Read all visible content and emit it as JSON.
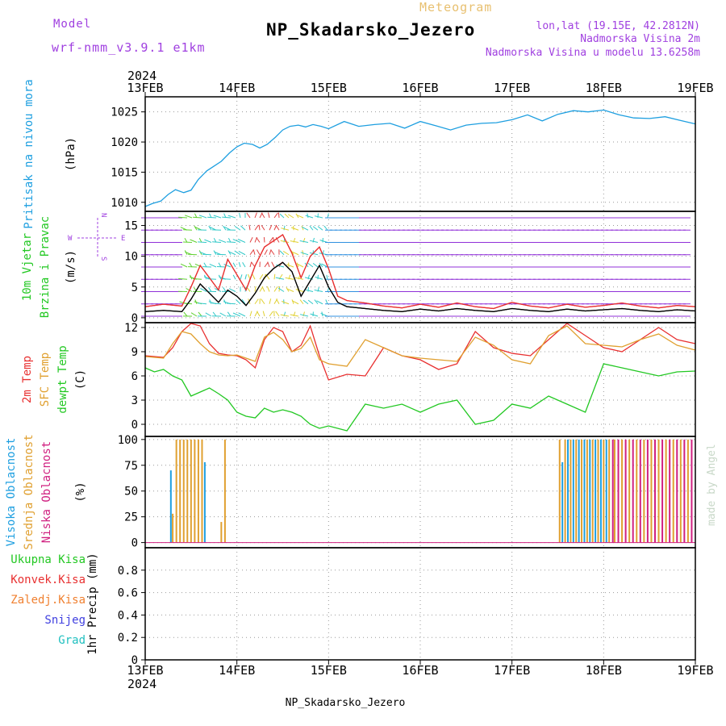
{
  "header": {
    "model_label": "Model",
    "model_name": "wrf-nmm_v3.9.1 e1km",
    "meteogram_label": "Meteogram",
    "station": "NP_Skadarsko_Jezero",
    "lonlat": "lon,lat (19.15E, 42.2812N)",
    "altitude": "Nadmorska Visina 2m",
    "model_altitude": "Nadmorska Visina u modelu 13.6258m",
    "footer_station": "NP_Skadarsko_Jezero",
    "credit": "made by Angel"
  },
  "chart_data": {
    "type": "line",
    "time_axis": {
      "year": "2024",
      "ticks": [
        "13FEB",
        "14FEB",
        "15FEB",
        "16FEB",
        "17FEB",
        "18FEB",
        "19FEB"
      ]
    },
    "colors": {
      "pressure": "#1e9fe0",
      "temp2m": "#e83030",
      "sfc": "#e0a030",
      "dewp": "#22c822",
      "wind_speed": "#000000",
      "gust": "#e83030",
      "cloud_high": "#1e9fe0",
      "cloud_mid": "#e0a030",
      "cloud_low": "#d02080",
      "precip_total": "#22c822",
      "precip_conv": "#e83030",
      "precip_frozen": "#f08030",
      "precip_snow": "#4040e0",
      "precip_graupel": "#20c0c0",
      "wind_label": "#a040e0"
    },
    "panels": [
      {
        "id": "pressure",
        "labels": [
          {
            "text": "Pritisak na nivou mora",
            "color": "#1e9fe0"
          }
        ],
        "unit": "(hPa)",
        "ylim": [
          1008.5,
          1027.5
        ],
        "yticks": [
          "1010",
          "1015",
          "1020",
          "1025"
        ],
        "series": [
          {
            "color_key": "pressure",
            "x": [
              0,
              0.08,
              0.17,
              0.25,
              0.33,
              0.42,
              0.5,
              0.58,
              0.67,
              0.75,
              0.83,
              0.92,
              1.0,
              1.08,
              1.17,
              1.25,
              1.33,
              1.42,
              1.5,
              1.58,
              1.67,
              1.75,
              1.83,
              1.92,
              2.0,
              2.17,
              2.33,
              2.5,
              2.67,
              2.83,
              3.0,
              3.17,
              3.33,
              3.5,
              3.67,
              3.83,
              4.0,
              4.17,
              4.33,
              4.5,
              4.67,
              4.83,
              5.0,
              5.17,
              5.33,
              5.5,
              5.67,
              5.83,
              6.0
            ],
            "y": [
              1009.3,
              1009.8,
              1010.2,
              1011.3,
              1012.1,
              1011.6,
              1012.0,
              1013.8,
              1015.2,
              1016.0,
              1016.8,
              1018.2,
              1019.2,
              1019.8,
              1019.6,
              1019.0,
              1019.6,
              1020.8,
              1022.0,
              1022.6,
              1022.8,
              1022.5,
              1022.9,
              1022.6,
              1022.2,
              1023.4,
              1022.6,
              1022.9,
              1023.1,
              1022.3,
              1023.4,
              1022.7,
              1022.0,
              1022.8,
              1023.1,
              1023.2,
              1023.7,
              1024.5,
              1023.5,
              1024.6,
              1025.2,
              1025.0,
              1025.3,
              1024.5,
              1024.0,
              1023.9,
              1024.2,
              1023.6,
              1023.0
            ]
          }
        ]
      },
      {
        "id": "wind",
        "labels": [
          {
            "text": "10m Vjetar",
            "color": "#22c822"
          },
          {
            "text": "Brzina i Pravac",
            "color": "#22c822"
          }
        ],
        "unit": "(m/s)",
        "ylim": [
          -0.8,
          17.3
        ],
        "yticks": [
          "0",
          "5",
          "10",
          "15"
        ],
        "direction_legend": {
          "north": "N",
          "west": "W",
          "east": "E",
          "south": "S"
        },
        "series": [
          {
            "color_key": "wind_speed",
            "x": [
              0,
              0.2,
              0.4,
              0.5,
              0.6,
              0.7,
              0.8,
              0.9,
              1.0,
              1.1,
              1.2,
              1.3,
              1.4,
              1.5,
              1.6,
              1.7,
              1.8,
              1.9,
              2.0,
              2.1,
              2.2,
              2.4,
              2.6,
              2.8,
              3.0,
              3.2,
              3.4,
              3.6,
              3.8,
              4.0,
              4.2,
              4.4,
              4.6,
              4.8,
              5.0,
              5.2,
              5.4,
              5.6,
              5.8,
              6.0
            ],
            "y": [
              1.0,
              1.2,
              1.0,
              3.0,
              5.5,
              4.0,
              2.5,
              4.5,
              3.5,
              2.0,
              4.0,
              6.5,
              8.0,
              9.0,
              7.5,
              3.5,
              6.0,
              8.5,
              5.0,
              2.5,
              1.8,
              1.5,
              1.2,
              1.0,
              1.4,
              1.1,
              1.5,
              1.2,
              1.0,
              1.5,
              1.2,
              1.0,
              1.4,
              1.1,
              1.3,
              1.5,
              1.2,
              1.0,
              1.3,
              1.1
            ]
          },
          {
            "color_key": "gust",
            "x": [
              0,
              0.2,
              0.4,
              0.5,
              0.6,
              0.7,
              0.8,
              0.9,
              1.0,
              1.1,
              1.2,
              1.3,
              1.4,
              1.5,
              1.6,
              1.7,
              1.8,
              1.9,
              2.0,
              2.1,
              2.2,
              2.4,
              2.6,
              2.8,
              3.0,
              3.2,
              3.4,
              3.6,
              3.8,
              4.0,
              4.2,
              4.4,
              4.6,
              4.8,
              5.0,
              5.2,
              5.4,
              5.6,
              5.8,
              6.0
            ],
            "y": [
              1.8,
              2.2,
              1.9,
              5.0,
              8.5,
              6.5,
              4.5,
              9.5,
              7.0,
              4.5,
              8.5,
              11.5,
              12.5,
              13.5,
              10.5,
              6.5,
              10.0,
              11.5,
              8.0,
              3.5,
              2.8,
              2.4,
              1.9,
              1.6,
              2.2,
              1.7,
              2.4,
              1.8,
              1.5,
              2.5,
              1.9,
              1.6,
              2.2,
              1.7,
              2.0,
              2.4,
              1.9,
              1.6,
              2.0,
              1.8
            ]
          }
        ]
      },
      {
        "id": "temperature",
        "labels": [
          {
            "text": "2m Temp",
            "color": "#e83030"
          },
          {
            "text": "SFC Temp",
            "color": "#e0a030"
          },
          {
            "text": "dewpt Temp",
            "color": "#22c822"
          }
        ],
        "unit": "(C)",
        "ylim": [
          -1.5,
          12.6
        ],
        "yticks": [
          "0",
          "3",
          "6",
          "9",
          "12"
        ],
        "series": [
          {
            "color_key": "temp2m",
            "x": [
              0,
              0.1,
              0.2,
              0.3,
              0.4,
              0.5,
              0.6,
              0.7,
              0.8,
              0.9,
              1.0,
              1.1,
              1.2,
              1.3,
              1.4,
              1.5,
              1.6,
              1.7,
              1.8,
              1.9,
              2.0,
              2.2,
              2.4,
              2.6,
              2.8,
              3.0,
              3.2,
              3.4,
              3.6,
              3.8,
              4.0,
              4.2,
              4.4,
              4.6,
              4.8,
              5.0,
              5.2,
              5.4,
              5.6,
              5.8,
              6.0
            ],
            "y": [
              8.5,
              8.4,
              8.3,
              9.5,
              11.5,
              12.5,
              12.2,
              10.0,
              8.8,
              8.6,
              8.5,
              8.0,
              7.0,
              10.5,
              12.0,
              11.5,
              9.0,
              9.8,
              12.2,
              8.5,
              5.5,
              6.2,
              6.0,
              9.5,
              8.5,
              8.0,
              6.8,
              7.5,
              11.5,
              9.5,
              8.8,
              8.5,
              10.5,
              12.5,
              11.0,
              9.5,
              9.0,
              10.5,
              12.0,
              10.5,
              10.0
            ]
          },
          {
            "color_key": "sfc",
            "x": [
              0,
              0.1,
              0.2,
              0.3,
              0.4,
              0.5,
              0.6,
              0.7,
              0.8,
              0.9,
              1.0,
              1.1,
              1.2,
              1.3,
              1.4,
              1.5,
              1.6,
              1.7,
              1.8,
              1.9,
              2.0,
              2.2,
              2.4,
              2.6,
              2.8,
              3.0,
              3.2,
              3.4,
              3.6,
              3.8,
              4.0,
              4.2,
              4.4,
              4.6,
              4.8,
              5.0,
              5.2,
              5.4,
              5.6,
              5.8,
              6.0
            ],
            "y": [
              8.4,
              8.3,
              8.2,
              10.0,
              11.5,
              11.2,
              10.0,
              9.0,
              8.6,
              8.5,
              8.6,
              8.2,
              7.8,
              10.8,
              11.4,
              10.5,
              9.0,
              9.4,
              10.8,
              8.0,
              7.5,
              7.2,
              10.5,
              9.5,
              8.5,
              8.2,
              8.0,
              7.8,
              10.8,
              9.8,
              8.0,
              7.5,
              11.0,
              12.2,
              10.0,
              9.8,
              9.6,
              10.5,
              11.2,
              9.8,
              9.2
            ]
          },
          {
            "color_key": "dewp",
            "x": [
              0,
              0.1,
              0.2,
              0.3,
              0.4,
              0.5,
              0.6,
              0.7,
              0.8,
              0.9,
              1.0,
              1.1,
              1.2,
              1.3,
              1.4,
              1.5,
              1.6,
              1.7,
              1.8,
              1.9,
              2.0,
              2.2,
              2.4,
              2.6,
              2.8,
              3.0,
              3.2,
              3.4,
              3.6,
              3.8,
              4.0,
              4.2,
              4.4,
              4.6,
              4.8,
              5.0,
              5.2,
              5.4,
              5.6,
              5.8,
              6.0
            ],
            "y": [
              7.0,
              6.5,
              6.8,
              6.0,
              5.5,
              3.5,
              4.0,
              4.5,
              3.8,
              3.0,
              1.5,
              1.0,
              0.8,
              2.0,
              1.5,
              1.8,
              1.5,
              1.0,
              0.0,
              -0.5,
              -0.2,
              -0.8,
              2.5,
              2.0,
              2.5,
              1.5,
              2.5,
              3.0,
              0.0,
              0.5,
              2.5,
              2.0,
              3.5,
              2.5,
              1.5,
              7.5,
              7.0,
              6.5,
              6.0,
              6.5,
              6.6
            ]
          }
        ]
      },
      {
        "id": "clouds",
        "labels": [
          {
            "text": "Visoka Oblacnost",
            "color": "#1e9fe0"
          },
          {
            "text": "Srednja Oblacnost",
            "color": "#e0a030"
          },
          {
            "text": "Niska Oblacnost",
            "color": "#d02080"
          }
        ],
        "unit": "(%)",
        "ylim": [
          -5,
          103
        ],
        "yticks": [
          "0",
          "25",
          "50",
          "75",
          "100"
        ],
        "bar_series": [
          {
            "color_key": "cloud_high",
            "x": [
              0.28,
              0.65,
              4.55,
              4.61,
              4.67,
              4.73,
              4.79,
              4.85,
              4.91,
              4.97,
              5.03
            ],
            "y": [
              70,
              78,
              78,
              100,
              100,
              100,
              100,
              100,
              100,
              100,
              100
            ]
          },
          {
            "color_key": "cloud_mid",
            "x": [
              0.3,
              0.34,
              0.38,
              0.42,
              0.46,
              0.5,
              0.54,
              0.58,
              0.62,
              0.83,
              0.87,
              4.52,
              4.58,
              4.64,
              4.7,
              4.76,
              4.82,
              4.88,
              4.94,
              5.0,
              5.06,
              5.12,
              5.2,
              5.28,
              5.36,
              5.44,
              5.52,
              5.6,
              5.68,
              5.76,
              5.84,
              5.92
            ],
            "y": [
              28,
              100,
              100,
              100,
              100,
              100,
              100,
              100,
              100,
              20,
              100,
              100,
              100,
              100,
              100,
              100,
              100,
              100,
              100,
              100,
              100,
              100,
              100,
              100,
              100,
              100,
              100,
              100,
              100,
              100,
              100,
              100
            ]
          },
          {
            "color_key": "cloud_low",
            "x": [
              5.1,
              5.16,
              5.24,
              5.32,
              5.4,
              5.48,
              5.56,
              5.64,
              5.72,
              5.8,
              5.88,
              5.96
            ],
            "y": [
              100,
              100,
              100,
              100,
              100,
              100,
              100,
              100,
              100,
              100,
              100,
              100
            ]
          }
        ]
      },
      {
        "id": "precip",
        "labels": [],
        "unit": "1hr Precip (mm)",
        "ylim": [
          0,
          1.0
        ],
        "yticks": [
          "0",
          "0.2",
          "0.4",
          "0.6",
          "0.8"
        ],
        "legend": [
          {
            "text": "Ukupna Kisa",
            "color": "#22c822"
          },
          {
            "text": "Konvek.Kisa",
            "color": "#e83030"
          },
          {
            "text": "Zaledj.Kisa",
            "color": "#f08030"
          },
          {
            "text": "Snijeg",
            "color": "#4040e0"
          },
          {
            "text": "Grad",
            "color": "#20c0c0"
          }
        ],
        "series": []
      }
    ]
  }
}
